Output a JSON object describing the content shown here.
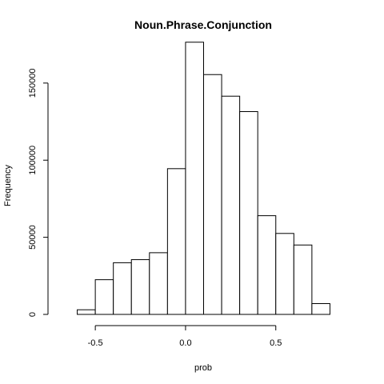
{
  "chart_data": {
    "type": "bar",
    "title": "Noun.Phrase.Conjunction",
    "xlabel": "prob",
    "ylabel": "Frequency",
    "xlim": [
      -0.7,
      0.9
    ],
    "ylim": [
      0,
      180000
    ],
    "x_ticks": [
      -0.5,
      0.0,
      0.5
    ],
    "x_tick_labels": [
      "-0.5",
      "0.0",
      "0.5"
    ],
    "y_ticks": [
      0,
      50000,
      100000,
      150000
    ],
    "y_tick_labels": [
      "0",
      "50000",
      "100000",
      "150000"
    ],
    "bins": [
      {
        "x0": -0.6,
        "x1": -0.5,
        "count": 3000
      },
      {
        "x0": -0.5,
        "x1": -0.4,
        "count": 22500
      },
      {
        "x0": -0.4,
        "x1": -0.3,
        "count": 33500
      },
      {
        "x0": -0.3,
        "x1": -0.2,
        "count": 35500
      },
      {
        "x0": -0.2,
        "x1": -0.1,
        "count": 40000
      },
      {
        "x0": -0.1,
        "x1": 0.0,
        "count": 94500
      },
      {
        "x0": 0.0,
        "x1": 0.1,
        "count": 176500
      },
      {
        "x0": 0.1,
        "x1": 0.2,
        "count": 155500
      },
      {
        "x0": 0.2,
        "x1": 0.3,
        "count": 141500
      },
      {
        "x0": 0.3,
        "x1": 0.4,
        "count": 131500
      },
      {
        "x0": 0.4,
        "x1": 0.5,
        "count": 64000
      },
      {
        "x0": 0.5,
        "x1": 0.6,
        "count": 52500
      },
      {
        "x0": 0.6,
        "x1": 0.7,
        "count": 45000
      },
      {
        "x0": 0.7,
        "x1": 0.8,
        "count": 7000
      }
    ],
    "grid": false,
    "legend": "none"
  }
}
